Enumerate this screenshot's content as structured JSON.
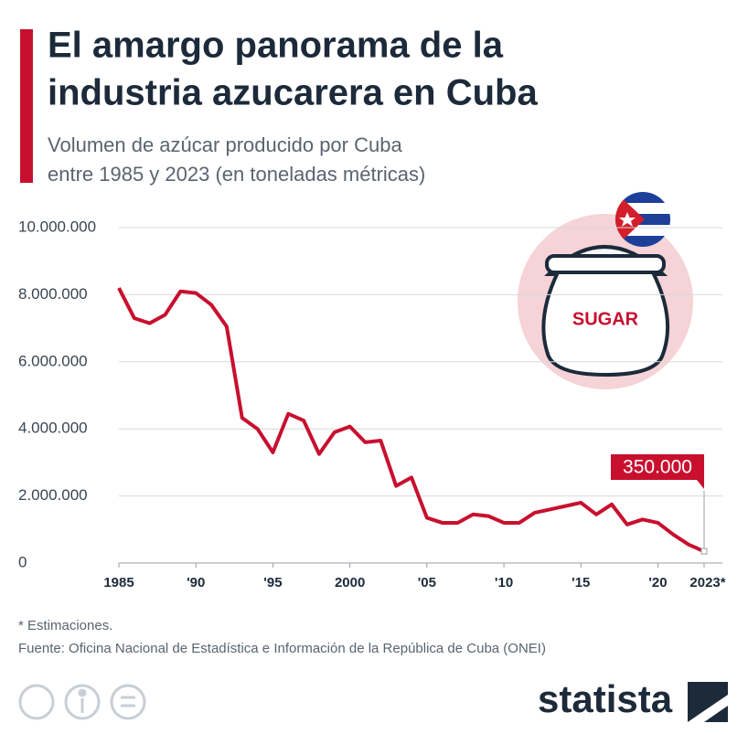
{
  "chart_data": {
    "type": "line",
    "title": [
      "El amargo panorama de la",
      "industria azucarera en Cuba"
    ],
    "subtitle": [
      "Volumen de azúcar producido por Cuba",
      "entre 1985 y 2023 (en toneladas métricas)"
    ],
    "x": [
      1985,
      1986,
      1987,
      1988,
      1989,
      1990,
      1991,
      1992,
      1993,
      1994,
      1995,
      1996,
      1997,
      1998,
      1999,
      2000,
      2001,
      2002,
      2003,
      2004,
      2005,
      2006,
      2007,
      2008,
      2009,
      2010,
      2011,
      2012,
      2013,
      2014,
      2015,
      2016,
      2017,
      2018,
      2019,
      2020,
      2021,
      2022,
      2023
    ],
    "series": [
      {
        "color": "#c8102e",
        "values": [
          8200000,
          7300000,
          7150000,
          7400000,
          8100000,
          8050000,
          7700000,
          7050000,
          4330000,
          4000000,
          3300000,
          4450000,
          4250000,
          3250000,
          3900000,
          4070000,
          3600000,
          3650000,
          2300000,
          2550000,
          1350000,
          1200000,
          1200000,
          1450000,
          1400000,
          1200000,
          1200000,
          1500000,
          1600000,
          1700000,
          1800000,
          1450000,
          1750000,
          1150000,
          1300000,
          1200000,
          850000,
          550000,
          350000
        ],
        "value_labels": [
          null,
          null,
          null,
          null,
          null,
          null,
          null,
          null,
          null,
          null,
          null,
          null,
          null,
          null,
          null,
          null,
          null,
          null,
          null,
          null,
          null,
          null,
          null,
          null,
          null,
          null,
          null,
          null,
          null,
          null,
          null,
          null,
          null,
          null,
          null,
          null,
          null,
          null,
          "350.000"
        ]
      }
    ],
    "xlim": [
      1985,
      2023
    ],
    "xticks": [
      1985,
      {
        "value": 1990,
        "label": "'90"
      },
      {
        "value": 1995,
        "label": "'95"
      },
      2000,
      {
        "value": 2005,
        "label": "'05"
      },
      {
        "value": 2010,
        "label": "'10"
      },
      {
        "value": 2015,
        "label": "'15"
      },
      {
        "value": 2020,
        "label": "'20"
      },
      {
        "value": 2023,
        "label": "2023*"
      }
    ],
    "ylim": [
      0,
      10000000
    ],
    "yticks": [
      0,
      {
        "value": 2000000,
        "label": "2.000.000"
      },
      {
        "value": 4000000,
        "label": "4.000.000"
      },
      {
        "value": 6000000,
        "label": "6.000.000"
      },
      {
        "value": 8000000,
        "label": "8.000.000"
      },
      {
        "value": 10000000,
        "label": "10.000.000"
      }
    ],
    "grid": true,
    "illustration_text": "SUGAR",
    "footnote": "* Estimaciones.",
    "source": "Fuente: Oficina Nacional de Estadística e Información de la República de Cuba (ONEI)",
    "brand": "statista"
  }
}
